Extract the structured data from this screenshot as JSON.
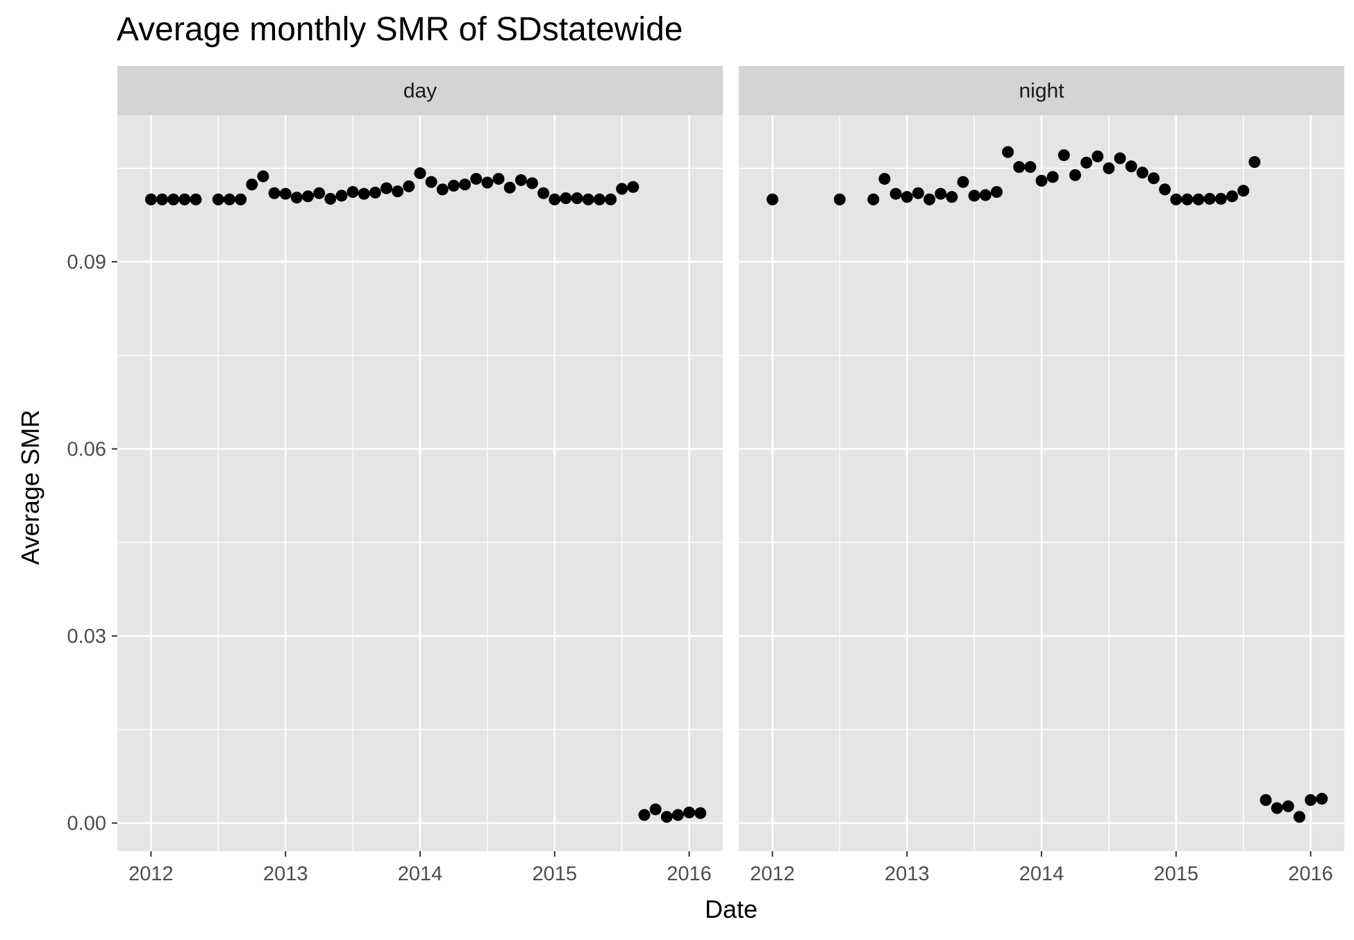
{
  "chart_data": {
    "type": "scatter",
    "title": "Average monthly SMR of SDstatewide",
    "xlabel": "Date",
    "ylabel": "Average SMR",
    "x_ticks": [
      "2012",
      "2013",
      "2014",
      "2015",
      "2016"
    ],
    "x_range": [
      "2011-10",
      "2016-04"
    ],
    "y_ticks": [
      "0.00",
      "0.03",
      "0.06",
      "0.09"
    ],
    "ylim": [
      -0.0045,
      0.1135
    ],
    "grid": true,
    "facets": [
      "day",
      "night"
    ],
    "colors": {
      "panel_background": "#e5e5e5",
      "strip_background": "#d4d4d4",
      "grid": "#ffffff",
      "point": "#000000"
    },
    "series": [
      {
        "facet": "day",
        "points": [
          [
            "2012-01",
            0.1
          ],
          [
            "2012-02",
            0.1
          ],
          [
            "2012-03",
            0.1
          ],
          [
            "2012-04",
            0.1
          ],
          [
            "2012-05",
            0.1
          ],
          [
            "2012-07",
            0.1
          ],
          [
            "2012-08",
            0.1
          ],
          [
            "2012-09",
            0.1
          ],
          [
            "2012-10",
            0.1024
          ],
          [
            "2012-11",
            0.1037
          ],
          [
            "2012-12",
            0.101
          ],
          [
            "2013-01",
            0.1009
          ],
          [
            "2013-02",
            0.1003
          ],
          [
            "2013-03",
            0.1005
          ],
          [
            "2013-04",
            0.101
          ],
          [
            "2013-05",
            0.1001
          ],
          [
            "2013-06",
            0.1006
          ],
          [
            "2013-07",
            0.1012
          ],
          [
            "2013-08",
            0.1009
          ],
          [
            "2013-09",
            0.1011
          ],
          [
            "2013-10",
            0.1018
          ],
          [
            "2013-11",
            0.1013
          ],
          [
            "2013-12",
            0.1021
          ],
          [
            "2014-01",
            0.1042
          ],
          [
            "2014-02",
            0.1028
          ],
          [
            "2014-03",
            0.1016
          ],
          [
            "2014-04",
            0.1022
          ],
          [
            "2014-05",
            0.1024
          ],
          [
            "2014-06",
            0.1033
          ],
          [
            "2014-07",
            0.1027
          ],
          [
            "2014-08",
            0.1033
          ],
          [
            "2014-09",
            0.1019
          ],
          [
            "2014-10",
            0.1031
          ],
          [
            "2014-11",
            0.1026
          ],
          [
            "2014-12",
            0.101
          ],
          [
            "2015-01",
            0.1
          ],
          [
            "2015-02",
            0.1002
          ],
          [
            "2015-03",
            0.1002
          ],
          [
            "2015-04",
            0.1
          ],
          [
            "2015-05",
            0.1
          ],
          [
            "2015-06",
            0.1
          ],
          [
            "2015-07",
            0.1017
          ],
          [
            "2015-08",
            0.102
          ],
          [
            "2015-09",
            0.0013
          ],
          [
            "2015-10",
            0.0022
          ],
          [
            "2015-11",
            0.001
          ],
          [
            "2015-12",
            0.0013
          ],
          [
            "2016-01",
            0.0017
          ],
          [
            "2016-02",
            0.0016
          ]
        ]
      },
      {
        "facet": "night",
        "points": [
          [
            "2012-01",
            0.1
          ],
          [
            "2012-07",
            0.1
          ],
          [
            "2012-10",
            0.1
          ],
          [
            "2012-11",
            0.1033
          ],
          [
            "2012-12",
            0.1009
          ],
          [
            "2013-01",
            0.1004
          ],
          [
            "2013-02",
            0.101
          ],
          [
            "2013-03",
            0.1
          ],
          [
            "2013-04",
            0.1009
          ],
          [
            "2013-05",
            0.1004
          ],
          [
            "2013-06",
            0.1028
          ],
          [
            "2013-07",
            0.1006
          ],
          [
            "2013-08",
            0.1007
          ],
          [
            "2013-09",
            0.1012
          ],
          [
            "2013-10",
            0.1076
          ],
          [
            "2013-11",
            0.1052
          ],
          [
            "2013-12",
            0.1052
          ],
          [
            "2014-01",
            0.103
          ],
          [
            "2014-02",
            0.1036
          ],
          [
            "2014-03",
            0.1071
          ],
          [
            "2014-04",
            0.1039
          ],
          [
            "2014-05",
            0.1059
          ],
          [
            "2014-06",
            0.1069
          ],
          [
            "2014-07",
            0.105
          ],
          [
            "2014-08",
            0.1066
          ],
          [
            "2014-09",
            0.1053
          ],
          [
            "2014-10",
            0.1043
          ],
          [
            "2014-11",
            0.1034
          ],
          [
            "2014-12",
            0.1016
          ],
          [
            "2015-01",
            0.1
          ],
          [
            "2015-02",
            0.1
          ],
          [
            "2015-03",
            0.1
          ],
          [
            "2015-04",
            0.1001
          ],
          [
            "2015-05",
            0.1001
          ],
          [
            "2015-06",
            0.1005
          ],
          [
            "2015-07",
            0.1014
          ],
          [
            "2015-08",
            0.106
          ],
          [
            "2015-09",
            0.0037
          ],
          [
            "2015-10",
            0.0024
          ],
          [
            "2015-11",
            0.0027
          ],
          [
            "2015-12",
            0.001
          ],
          [
            "2016-01",
            0.0037
          ],
          [
            "2016-02",
            0.0039
          ]
        ]
      }
    ]
  }
}
